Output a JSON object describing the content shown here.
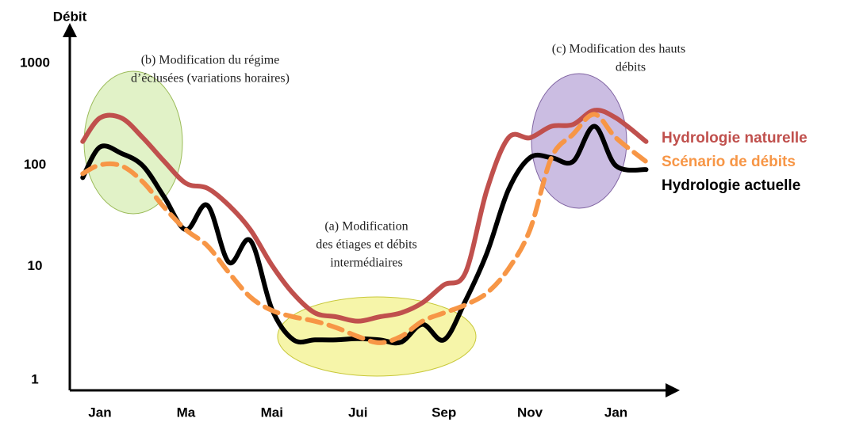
{
  "chart_data": {
    "type": "line",
    "ylabel": "Débit",
    "log_y": true,
    "ylim": [
      1,
      1000
    ],
    "yticks": [
      1,
      10,
      100,
      1000
    ],
    "xlim": [
      -0.7,
      13.3
    ],
    "xticks": [
      {
        "value": 0,
        "label": "Jan"
      },
      {
        "value": 2,
        "label": "Ma"
      },
      {
        "value": 4,
        "label": "Mai"
      },
      {
        "value": 6,
        "label": "Jui"
      },
      {
        "value": 8,
        "label": "Sep"
      },
      {
        "value": 10,
        "label": "Nov"
      },
      {
        "value": 12,
        "label": "Jan"
      }
    ],
    "x": [
      -0.4,
      0,
      0.5,
      1,
      1.5,
      2,
      2.5,
      3,
      3.5,
      4,
      4.5,
      5,
      5.5,
      6,
      6.5,
      7,
      7.5,
      8,
      8.5,
      9,
      9.5,
      10,
      10.5,
      11,
      11.5,
      12,
      12.7
    ],
    "series": [
      {
        "name": "Hydrologie naturelle",
        "color": "#c0504d",
        "dashed": false,
        "values": [
          170,
          290,
          290,
          185,
          108,
          66,
          59,
          40,
          23,
          10.3,
          5.4,
          3.5,
          3.2,
          2.9,
          3.2,
          3.5,
          4.4,
          6.6,
          8.7,
          57,
          185,
          185,
          240,
          250,
          345,
          290,
          170
        ]
      },
      {
        "name": "Scénario de débits",
        "color": "#f79646",
        "dashed": true,
        "values": [
          82,
          100,
          98,
          68,
          38,
          23,
          16,
          8.7,
          5,
          3.7,
          3.2,
          2.9,
          2.5,
          2.05,
          1.78,
          2.05,
          2.9,
          3.5,
          4.2,
          5.5,
          9.5,
          23,
          118,
          200,
          315,
          185,
          108
        ]
      },
      {
        "name": "Hydrologie actuelle",
        "color": "#000000",
        "dashed": false,
        "values": [
          75,
          150,
          130,
          98,
          48,
          23,
          40,
          11,
          18,
          3.8,
          1.9,
          1.9,
          1.9,
          1.95,
          1.9,
          1.8,
          2.7,
          1.9,
          4.6,
          13.6,
          57,
          118,
          118,
          108,
          240,
          98,
          90
        ]
      }
    ],
    "annotations": [
      [
        "(b) Modification du régime",
        "d’éclusées (variations horaires)"
      ],
      [
        "(a) Modification",
        "des étiages et débits",
        "intermédiaires"
      ],
      [
        "(c) Modification des hauts",
        "débits"
      ]
    ]
  }
}
